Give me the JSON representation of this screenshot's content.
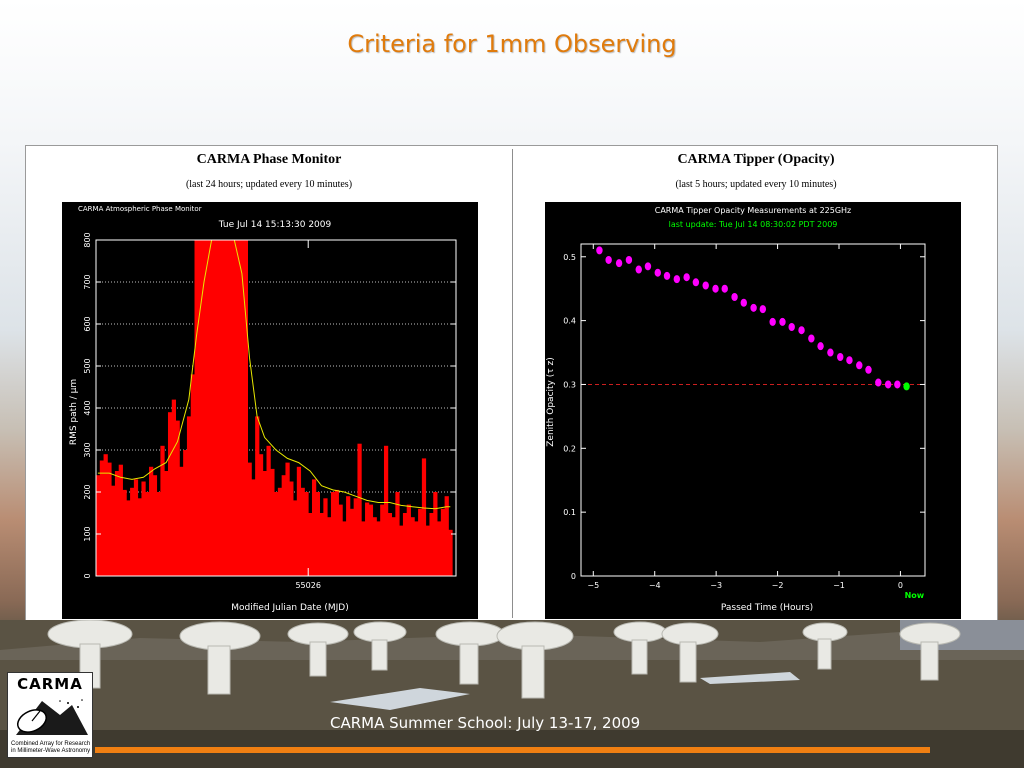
{
  "slide": {
    "title": "Criteria for 1mm Observing",
    "footer": "CARMA Summer School: July 13-17, 2009",
    "logo": {
      "text": "CARMA",
      "caption": "Combined Array for Research in Millimeter-Wave Astronomy"
    }
  },
  "left_panel": {
    "title": "CARMA Phase Monitor",
    "subtitle": "(last 24 hours; updated every 10 minutes)"
  },
  "right_panel": {
    "title": "CARMA Tipper (Opacity)",
    "subtitle": "(last 5 hours; updated every 10 minutes)"
  },
  "colors": {
    "title": "#e07b0c",
    "orange_bar": "#f07f12",
    "phase_bars": "#ff0000",
    "phase_smooth": "#e8e800",
    "tipper_points": "#ff00ff",
    "tipper_now": "#00ff00",
    "threshold": "#cc1f1f"
  },
  "chart_data": [
    {
      "type": "bar",
      "plot_label": "CARMA Atmospheric Phase Monitor",
      "title": "Tue Jul 14 15:13:30 2009",
      "xlabel": "Modified Julian Date (MJD)",
      "ylabel": "RMS path / μm",
      "ylim": [
        0,
        800
      ],
      "yticks": [
        0,
        100,
        200,
        300,
        400,
        500,
        600,
        700,
        800
      ],
      "xticks": [
        {
          "label": "55026",
          "x": 55026
        }
      ],
      "xlim": [
        55025.44,
        55026.39
      ],
      "grid": "dotted horizontal",
      "series": [
        {
          "name": "RMS path",
          "x": [
            55025.445,
            55025.455,
            55025.465,
            55025.475,
            55025.485,
            55025.495,
            55025.505,
            55025.515,
            55025.525,
            55025.535,
            55025.545,
            55025.555,
            55025.565,
            55025.575,
            55025.585,
            55025.595,
            55025.605,
            55025.615,
            55025.625,
            55025.635,
            55025.645,
            55025.655,
            55025.665,
            55025.675,
            55025.685,
            55025.695,
            55025.705,
            55025.715,
            55025.725,
            55025.735,
            55025.745,
            55025.755,
            55025.765,
            55025.775,
            55025.785,
            55025.795,
            55025.805,
            55025.815,
            55025.825,
            55025.835,
            55025.845,
            55025.855,
            55025.865,
            55025.875,
            55025.885,
            55025.895,
            55025.905,
            55025.915,
            55025.925,
            55025.935,
            55025.945,
            55025.955,
            55025.965,
            55025.975,
            55025.985,
            55025.995,
            55026.005,
            55026.015,
            55026.025,
            55026.035,
            55026.045,
            55026.055,
            55026.065,
            55026.075,
            55026.085,
            55026.095,
            55026.105,
            55026.115,
            55026.125,
            55026.135,
            55026.145,
            55026.155,
            55026.165,
            55026.175,
            55026.185,
            55026.195,
            55026.205,
            55026.215,
            55026.225,
            55026.235,
            55026.245,
            55026.255,
            55026.265,
            55026.275,
            55026.285,
            55026.295,
            55026.305,
            55026.315,
            55026.325,
            55026.335,
            55026.345,
            55026.355,
            55026.365,
            55026.375
          ],
          "values": [
            240,
            275,
            290,
            270,
            215,
            250,
            265,
            205,
            180,
            210,
            230,
            185,
            225,
            200,
            260,
            240,
            200,
            310,
            250,
            390,
            420,
            370,
            260,
            300,
            380,
            480,
            800,
            800,
            800,
            800,
            800,
            800,
            800,
            800,
            800,
            800,
            800,
            800,
            800,
            800,
            270,
            230,
            380,
            290,
            250,
            310,
            255,
            200,
            210,
            240,
            270,
            225,
            180,
            260,
            210,
            200,
            150,
            230,
            200,
            150,
            185,
            140,
            200,
            205,
            170,
            130,
            190,
            160,
            185,
            315,
            130,
            175,
            170,
            140,
            130,
            170,
            310,
            150,
            140,
            200,
            120,
            150,
            170,
            140,
            130,
            160,
            280,
            120,
            150,
            200,
            130,
            160,
            190,
            110
          ]
        },
        {
          "name": "smoothed",
          "x": [
            55025.445,
            55025.475,
            55025.505,
            55025.535,
            55025.565,
            55025.595,
            55025.625,
            55025.655,
            55025.685,
            55025.705,
            55025.725,
            55025.745,
            55025.765,
            55025.785,
            55025.805,
            55025.825,
            55025.845,
            55025.865,
            55025.885,
            55025.915,
            55025.945,
            55025.975,
            55026.005,
            55026.035,
            55026.065,
            55026.095,
            55026.125,
            55026.155,
            55026.185,
            55026.215,
            55026.245,
            55026.275,
            55026.305,
            55026.335,
            55026.365,
            55026.375
          ],
          "values": [
            245,
            245,
            235,
            230,
            235,
            255,
            270,
            320,
            420,
            570,
            700,
            800,
            800,
            800,
            800,
            720,
            520,
            380,
            330,
            300,
            280,
            270,
            250,
            215,
            205,
            200,
            190,
            180,
            175,
            175,
            168,
            165,
            162,
            160,
            165,
            165
          ]
        }
      ]
    },
    {
      "type": "scatter",
      "title": "CARMA Tipper Opacity Measurements at 225GHz",
      "subtitle": "last update: Tue Jul 14 08:30:02 PDT 2009",
      "xlabel": "Passed Time (Hours)",
      "ylabel": "Zenith Opacity (τ z)",
      "xlim": [
        -5.2,
        0.4
      ],
      "ylim": [
        0,
        0.52
      ],
      "xticks": [
        -5,
        -4,
        -3,
        -2,
        -1,
        0
      ],
      "yticks": [
        0,
        0.1,
        0.2,
        0.3,
        0.4,
        0.5
      ],
      "now_label": "Now",
      "threshold": 0.3,
      "series": [
        {
          "name": "tipper",
          "x": [
            -4.9,
            -4.75,
            -4.58,
            -4.42,
            -4.26,
            -4.11,
            -3.95,
            -3.8,
            -3.64,
            -3.48,
            -3.33,
            -3.17,
            -3.01,
            -2.86,
            -2.7,
            -2.55,
            -2.39,
            -2.24,
            -2.08,
            -1.92,
            -1.77,
            -1.61,
            -1.45,
            -1.3,
            -1.14,
            -0.98,
            -0.83,
            -0.67,
            -0.52,
            -0.36,
            -0.2,
            -0.05
          ],
          "values": [
            0.51,
            0.495,
            0.49,
            0.495,
            0.48,
            0.485,
            0.475,
            0.47,
            0.465,
            0.468,
            0.46,
            0.455,
            0.45,
            0.45,
            0.437,
            0.428,
            0.42,
            0.418,
            0.398,
            0.398,
            0.39,
            0.385,
            0.372,
            0.36,
            0.35,
            0.343,
            0.338,
            0.33,
            0.323,
            0.303,
            0.3,
            0.3
          ]
        },
        {
          "name": "now",
          "x": [
            0.1
          ],
          "values": [
            0.297
          ]
        }
      ]
    }
  ]
}
